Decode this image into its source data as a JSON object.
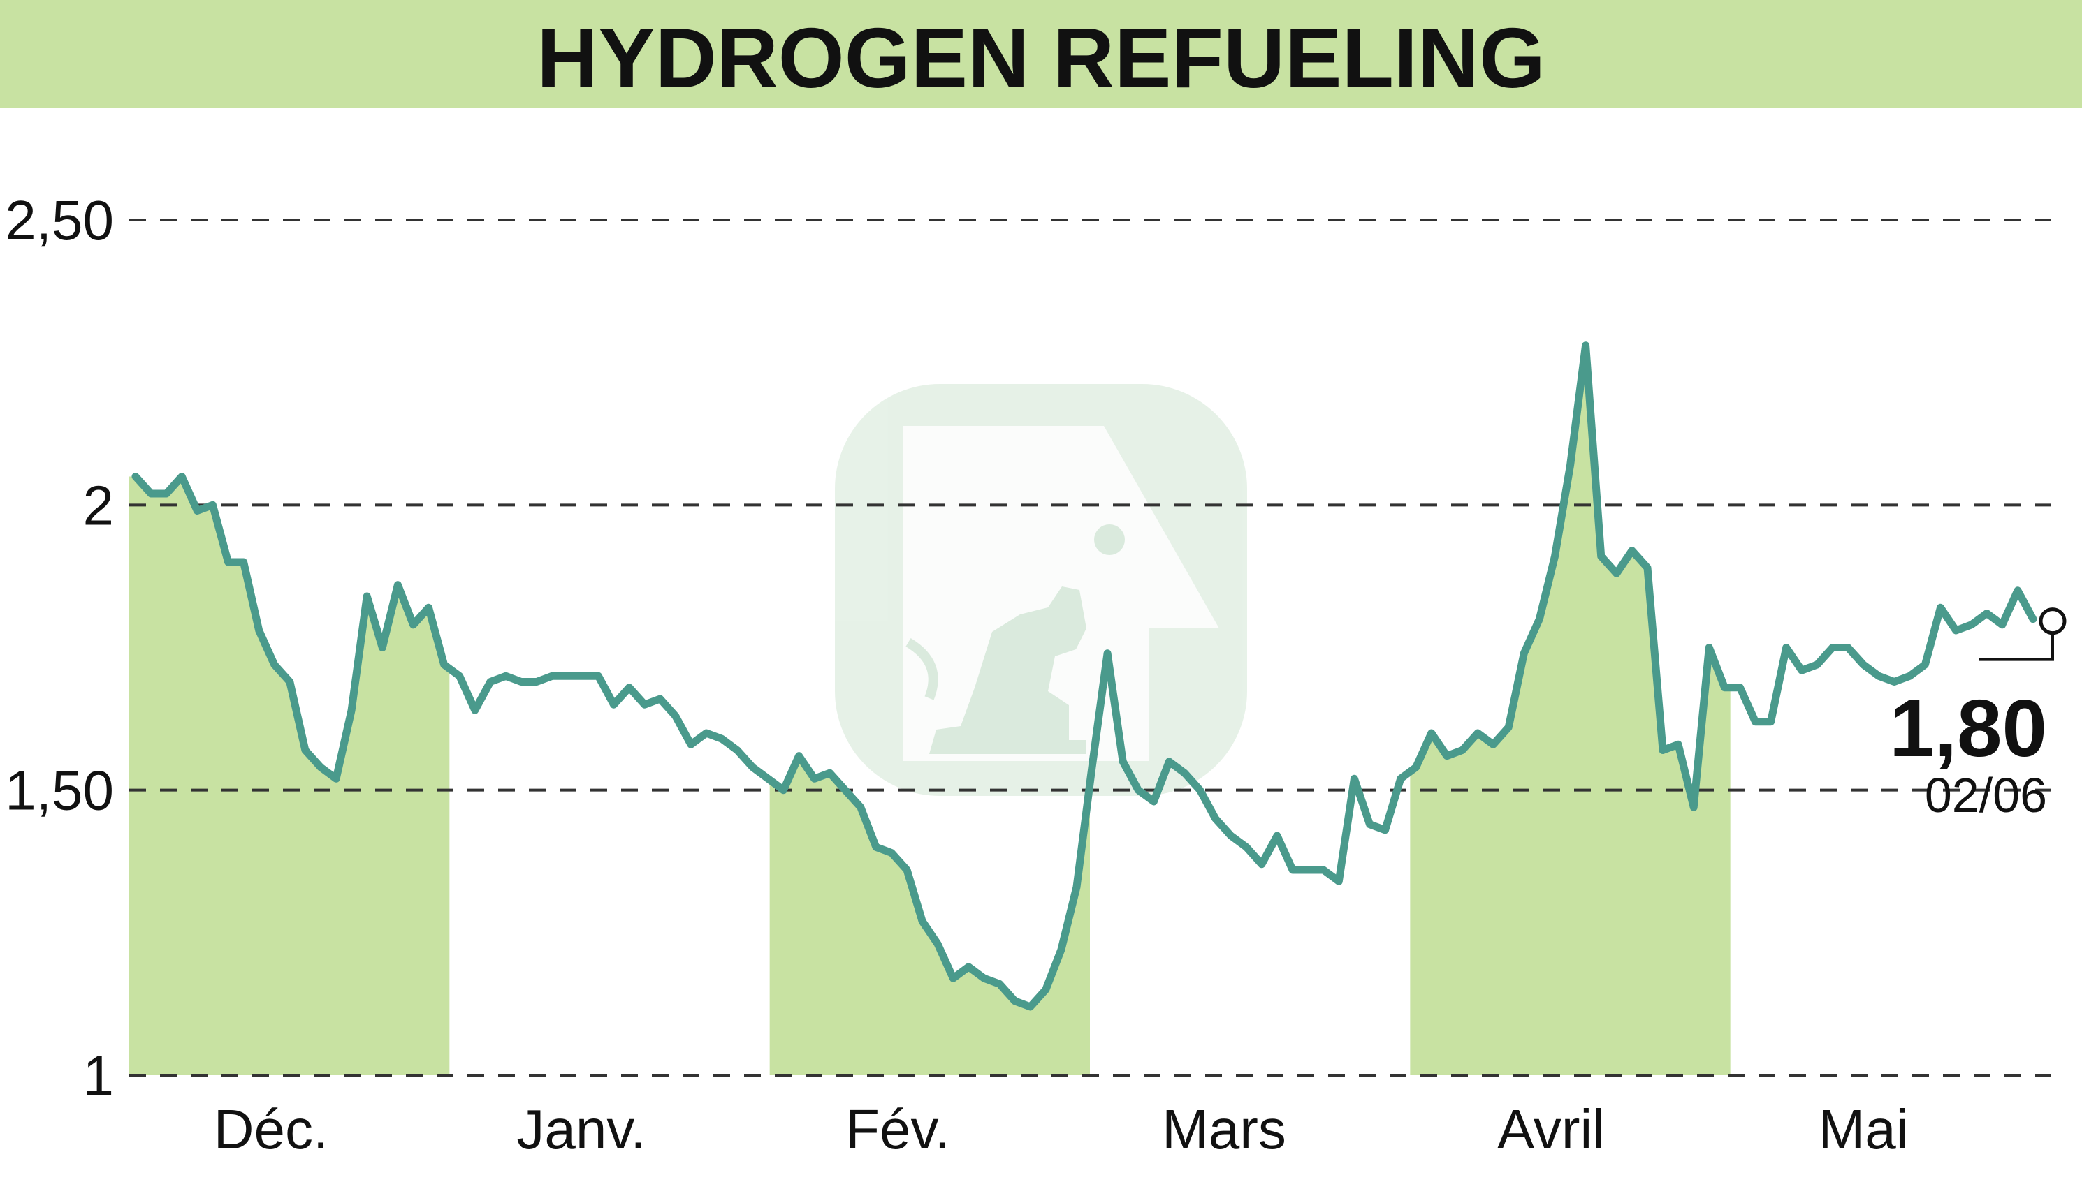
{
  "header": {
    "title": "HYDROGEN REFUELING"
  },
  "colors": {
    "header_bg": "#c8e2a2",
    "band_fill": "#c8e2a2",
    "line": "#4a9a8c",
    "grid": "#333333",
    "text": "#111111"
  },
  "chart_data": {
    "type": "line",
    "title": "HYDROGEN REFUELING",
    "xlabel": "",
    "ylabel": "",
    "ylim": [
      1,
      2.5
    ],
    "grid": true,
    "yticks": [
      1,
      1.5,
      2,
      2.5
    ],
    "ytick_labels": [
      "1",
      "1,50",
      "2",
      "2,50"
    ],
    "months": [
      {
        "label": "Déc.",
        "shaded": true
      },
      {
        "label": "Janv.",
        "shaded": false
      },
      {
        "label": "Fév.",
        "shaded": true
      },
      {
        "label": "Mars",
        "shaded": false
      },
      {
        "label": "Avril",
        "shaded": true
      },
      {
        "label": "Mai",
        "shaded": false
      }
    ],
    "series": [
      {
        "values": [
          2.05,
          2.02,
          2.02,
          2.05,
          1.99,
          2.0,
          1.9,
          1.9,
          1.78,
          1.72,
          1.69,
          1.57,
          1.54,
          1.52,
          1.64,
          1.84,
          1.75,
          1.86,
          1.79,
          1.82,
          1.72,
          1.7,
          1.64,
          1.69,
          1.7,
          1.69,
          1.69,
          1.7,
          1.7,
          1.7,
          1.7,
          1.65,
          1.68,
          1.65,
          1.66,
          1.63,
          1.58,
          1.6,
          1.59,
          1.57,
          1.54,
          1.52,
          1.5,
          1.56,
          1.52,
          1.53,
          1.5,
          1.47,
          1.4,
          1.39,
          1.36,
          1.27,
          1.23,
          1.17,
          1.19,
          1.17,
          1.16,
          1.13,
          1.12,
          1.15,
          1.22,
          1.33,
          1.54,
          1.74,
          1.55,
          1.5,
          1.48,
          1.55,
          1.53,
          1.5,
          1.45,
          1.42,
          1.4,
          1.37,
          1.42,
          1.36,
          1.36,
          1.36,
          1.34,
          1.52,
          1.44,
          1.43,
          1.52,
          1.54,
          1.6,
          1.56,
          1.57,
          1.6,
          1.58,
          1.61,
          1.74,
          1.8,
          1.91,
          2.07,
          2.28,
          1.91,
          1.88,
          1.92,
          1.89,
          1.57,
          1.58,
          1.47,
          1.75,
          1.68,
          1.68,
          1.62,
          1.62,
          1.75,
          1.71,
          1.72,
          1.75,
          1.75,
          1.72,
          1.7,
          1.69,
          1.7,
          1.72,
          1.82,
          1.78,
          1.79,
          1.81,
          1.79,
          1.85,
          1.8
        ]
      }
    ],
    "last_value_label": "1,80",
    "last_date_label": "02/06"
  }
}
